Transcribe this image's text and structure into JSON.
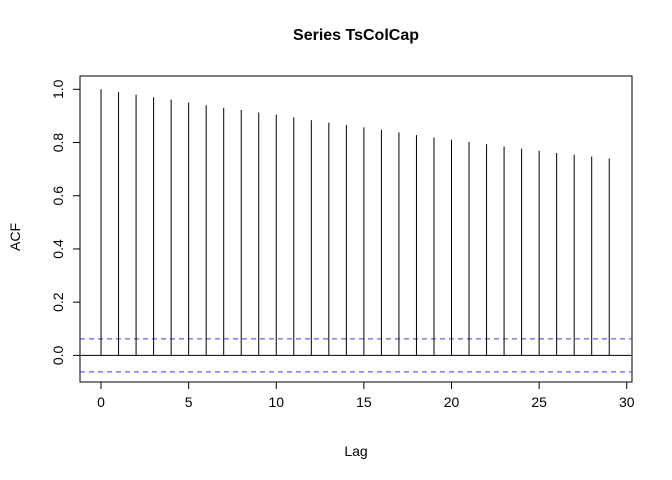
{
  "chart_data": {
    "type": "bar",
    "title": "Series  TsColCap",
    "xlabel": "Lag",
    "ylabel": "ACF",
    "xlim": [
      -1.2,
      30.3
    ],
    "ylim": [
      -0.1,
      1.05
    ],
    "x_ticks": [
      0,
      5,
      10,
      15,
      20,
      25,
      30
    ],
    "y_ticks": [
      0.0,
      0.2,
      0.4,
      0.6,
      0.8,
      1.0
    ],
    "x_tick_labels": [
      "0",
      "5",
      "10",
      "15",
      "20",
      "25",
      "30"
    ],
    "y_tick_labels": [
      "0.0",
      "0.2",
      "0.4",
      "0.6",
      "0.8",
      "1.0"
    ],
    "lags": [
      0,
      1,
      2,
      3,
      4,
      5,
      6,
      7,
      8,
      9,
      10,
      11,
      12,
      13,
      14,
      15,
      16,
      17,
      18,
      19,
      20,
      21,
      22,
      23,
      24,
      25,
      26,
      27,
      28,
      29
    ],
    "acf": [
      1.0,
      0.99,
      0.98,
      0.97,
      0.961,
      0.95,
      0.94,
      0.93,
      0.922,
      0.913,
      0.905,
      0.895,
      0.884,
      0.875,
      0.866,
      0.857,
      0.848,
      0.838,
      0.828,
      0.819,
      0.811,
      0.803,
      0.794,
      0.785,
      0.777,
      0.769,
      0.761,
      0.754,
      0.747,
      0.74
    ],
    "confidence_bounds": [
      0.062,
      -0.062
    ],
    "zero_line": 0,
    "grid": false,
    "colors": {
      "bars": "#000000",
      "confidence": "#3a3aff",
      "axes": "#000000"
    }
  }
}
